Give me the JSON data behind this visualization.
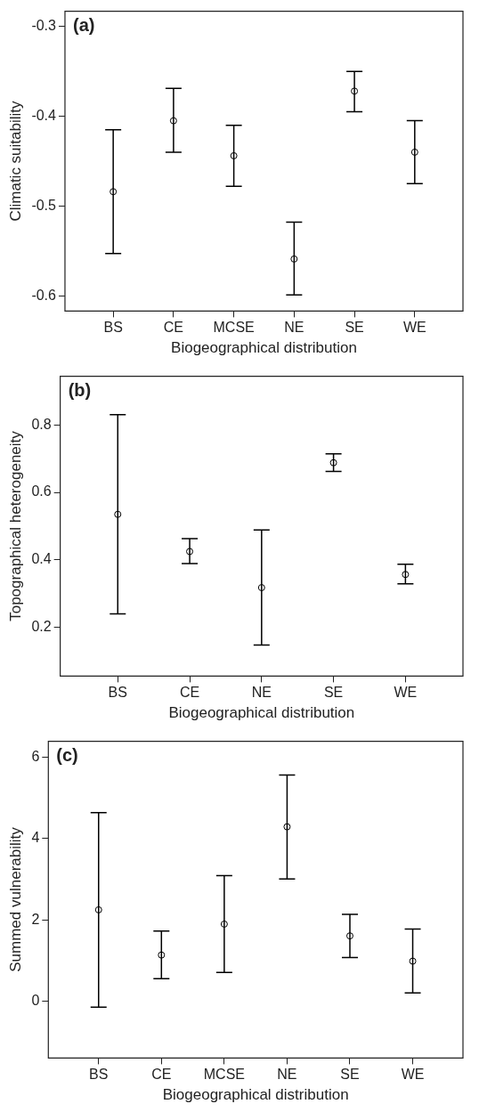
{
  "chart_data": [
    {
      "type": "scatter",
      "xlabel": "Biogeographical distribution",
      "ylabel": "Climatic suitability",
      "annotations": [
        "(a)"
      ],
      "categories": [
        "BS",
        "CE",
        "MCSE",
        "NE",
        "SE",
        "WE"
      ],
      "values": [
        -0.484,
        -0.405,
        -0.444,
        -0.559,
        -0.372,
        -0.44
      ],
      "errors": [
        [
          -0.553,
          -0.415
        ],
        [
          -0.44,
          -0.369
        ],
        [
          -0.478,
          -0.41
        ],
        [
          -0.599,
          -0.518
        ],
        [
          -0.395,
          -0.35
        ],
        [
          -0.475,
          -0.405
        ]
      ],
      "color": "#000000",
      "marker": "circle",
      "ylim": [
        -0.617,
        -0.283
      ],
      "yticks": [
        -0.6,
        -0.5,
        -0.4,
        -0.3
      ],
      "grid": false,
      "legend": false
    },
    {
      "type": "scatter",
      "xlabel": "Biogeographical distribution",
      "ylabel": "Topographical heterogeneity",
      "annotations": [
        "(b)"
      ],
      "categories": [
        "BS",
        "CE",
        "NE",
        "SE",
        "WE"
      ],
      "values": [
        0.535,
        0.425,
        0.318,
        0.688,
        0.357
      ],
      "errors": [
        [
          0.24,
          0.83
        ],
        [
          0.389,
          0.463
        ],
        [
          0.148,
          0.489
        ],
        [
          0.662,
          0.714
        ],
        [
          0.329,
          0.387
        ]
      ],
      "color": "#000000",
      "marker": "circle",
      "ylim": [
        0.056,
        0.944
      ],
      "yticks": [
        0.2,
        0.4,
        0.6,
        0.8
      ],
      "grid": false,
      "legend": false
    },
    {
      "type": "scatter",
      "xlabel": "Biogeographical distribution",
      "ylabel": "Summed vulnerability",
      "annotations": [
        "(c)"
      ],
      "categories": [
        "BS",
        "CE",
        "MCSE",
        "NE",
        "SE",
        "WE"
      ],
      "values": [
        2.25,
        1.14,
        1.9,
        4.29,
        1.61,
        0.99
      ],
      "errors": [
        [
          -0.14,
          4.64
        ],
        [
          0.56,
          1.73
        ],
        [
          0.71,
          3.09
        ],
        [
          3.01,
          5.56
        ],
        [
          1.08,
          2.14
        ],
        [
          0.21,
          1.78
        ]
      ],
      "color": "#000000",
      "marker": "circle",
      "ylim": [
        -1.39,
        6.39
      ],
      "yticks": [
        0,
        2,
        4,
        6
      ],
      "grid": false,
      "legend": false
    }
  ]
}
